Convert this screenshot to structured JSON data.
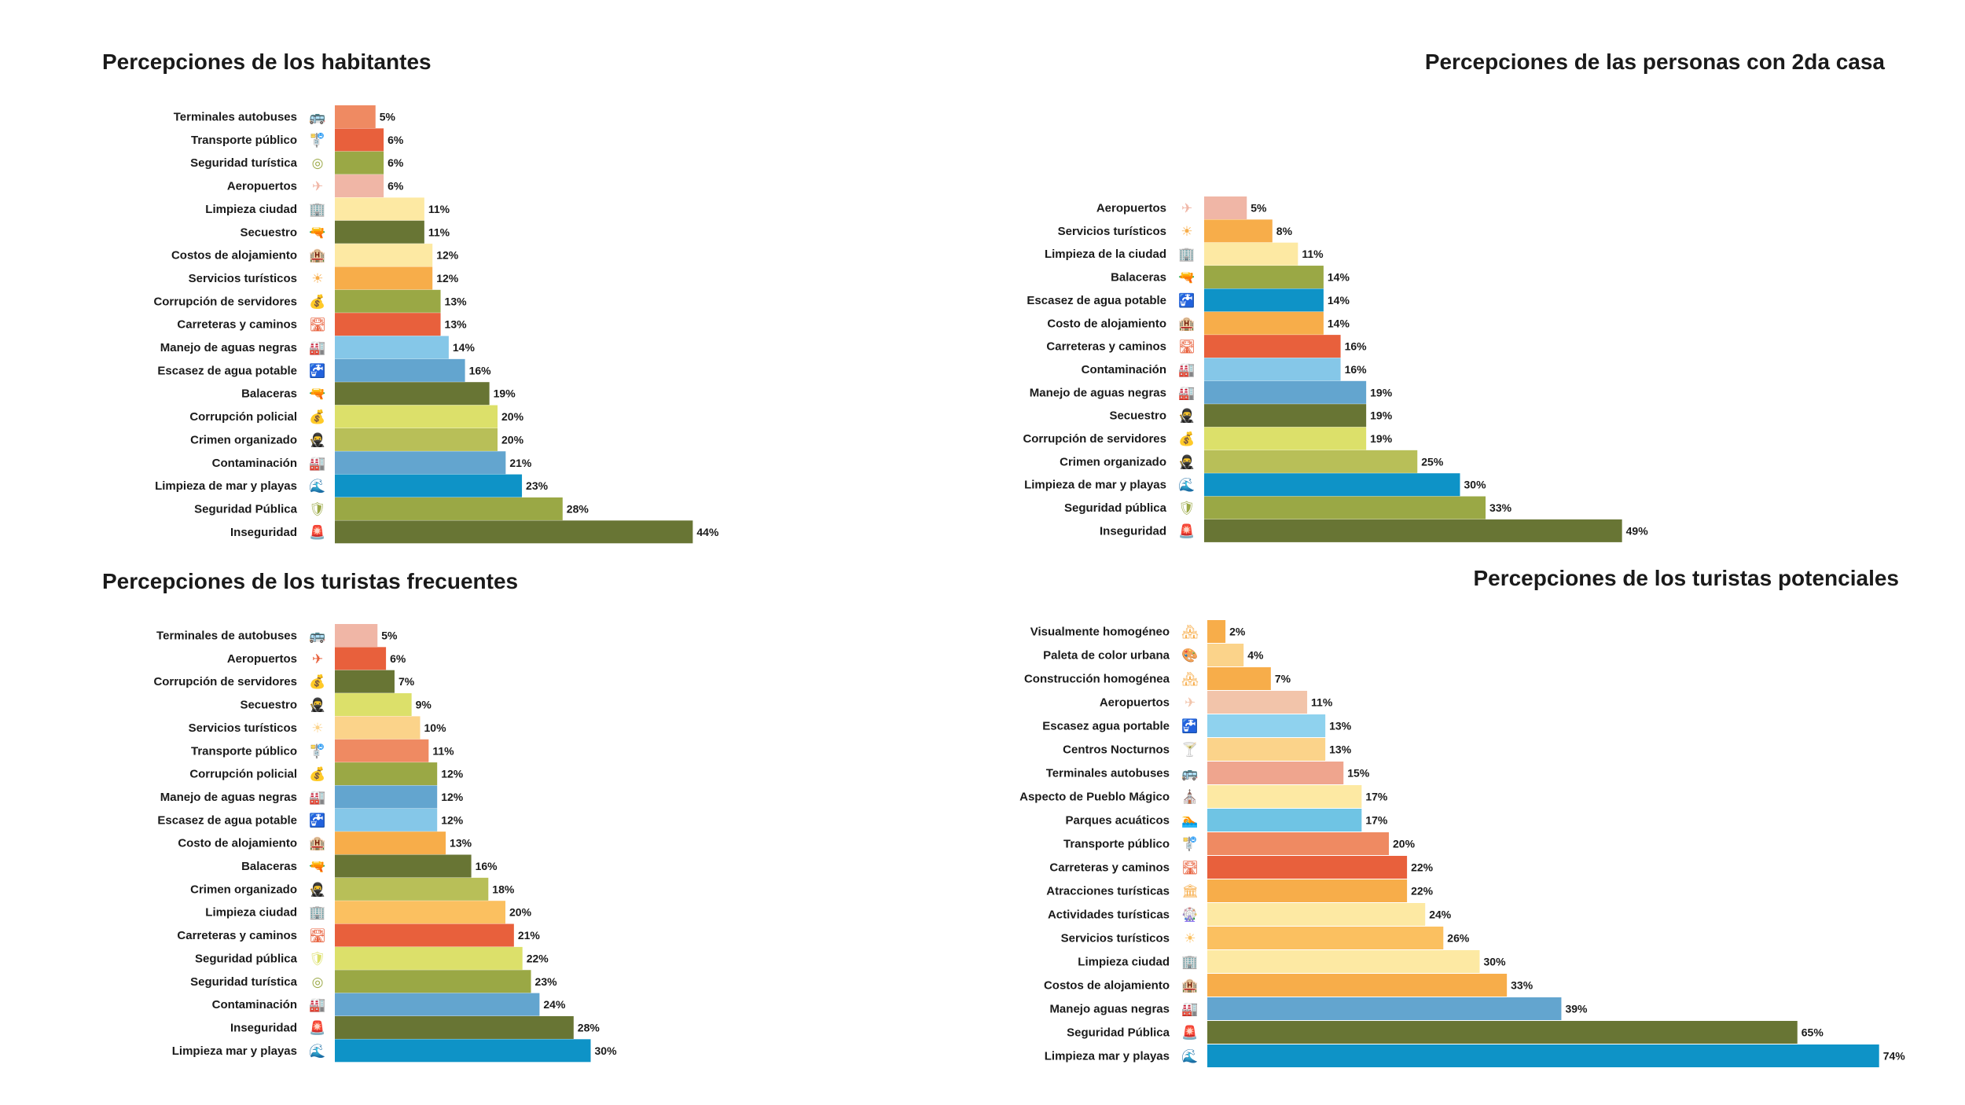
{
  "chart_data": [
    {
      "type": "bar",
      "title": "Percepciones de los habitantes",
      "unit": "%",
      "categories": [
        "Terminales autobuses",
        "Transporte público",
        "Seguridad turística",
        "Aeropuertos",
        "Limpieza ciudad",
        "Secuestro",
        "Costos de alojamiento",
        "Servicios turísticos",
        "Corrupción de servidores",
        "Carreteras y caminos",
        "Manejo de aguas negras",
        "Escasez de agua potable",
        "Balaceras",
        "Corrupción policial",
        "Crimen organizado",
        "Contaminación",
        "Limpieza de mar y playas",
        "Seguridad Pública",
        "Inseguridad"
      ],
      "values": [
        5,
        6,
        6,
        6,
        11,
        11,
        12,
        12,
        13,
        13,
        14,
        16,
        19,
        20,
        20,
        21,
        23,
        28,
        44
      ],
      "value_labels": [
        "5%",
        "6%",
        "6%",
        "6%",
        "11%",
        "11%",
        "12%",
        "12%",
        "13%",
        "13%",
        "14%",
        "16%",
        "19%",
        "20%",
        "20%",
        "21%",
        "23%",
        "28%",
        "44%"
      ],
      "colors": [
        "#ef8a62",
        "#e8603c",
        "#9aa845",
        "#f0b6a6",
        "#fde9a3",
        "#687534",
        "#fde9a3",
        "#f7ad4a",
        "#9aa845",
        "#e8603c",
        "#85c7e8",
        "#63a5cf",
        "#687534",
        "#dce06a",
        "#b8bf58",
        "#63a5cf",
        "#0e93c7",
        "#9aa845",
        "#687534"
      ],
      "icons": [
        "bus-icon",
        "bus-stop-icon",
        "lifebuoy-icon",
        "airplane-icon",
        "building-icon",
        "pistol-icon",
        "hotel-icon",
        "tourist-services-icon",
        "bribe-hands-icon",
        "road-icon",
        "sewage-icon",
        "faucet-icon",
        "pistol-icon",
        "bribe-hands-icon",
        "masked-criminal-icon",
        "factory-icon",
        "beach-wave-icon",
        "police-shield-icon",
        "alarm-icon"
      ],
      "xlabel": "",
      "ylabel": "",
      "xlim": [
        0,
        100
      ]
    },
    {
      "type": "bar",
      "title": "Percepciones de las personas con 2da casa",
      "unit": "%",
      "categories": [
        "Aeropuertos",
        "Servicios turísticos",
        "Limpieza de la ciudad",
        "Balaceras",
        "Escasez de agua potable",
        "Costo de alojamiento",
        "Carreteras y caminos",
        "Contaminación",
        "Manejo de aguas negras",
        "Secuestro",
        "Corrupción de servidores",
        "Crimen organizado",
        "Limpieza de mar y playas",
        "Seguridad pública",
        "Inseguridad"
      ],
      "values": [
        5,
        8,
        11,
        14,
        14,
        14,
        16,
        16,
        19,
        19,
        19,
        25,
        30,
        33,
        49
      ],
      "value_labels": [
        "5%",
        "8%",
        "11%",
        "14%",
        "14%",
        "14%",
        "16%",
        "16%",
        "19%",
        "19%",
        "19%",
        "25%",
        "30%",
        "33%",
        "49%"
      ],
      "colors": [
        "#f0b6a6",
        "#f7ad4a",
        "#fde9a3",
        "#9aa845",
        "#0e93c7",
        "#f7ad4a",
        "#e8603c",
        "#85c7e8",
        "#63a5cf",
        "#687534",
        "#dce06a",
        "#b8bf58",
        "#0e93c7",
        "#9aa845",
        "#687534"
      ],
      "icons": [
        "airplane-icon",
        "tourist-services-icon",
        "building-icon",
        "pistol-icon",
        "faucet-icon",
        "hotel-icon",
        "road-icon",
        "factory-icon",
        "sewage-icon",
        "masked-criminal-icon",
        "bribe-hands-icon",
        "masked-criminal-icon",
        "beach-wave-icon",
        "police-shield-icon",
        "alarm-icon"
      ],
      "xlabel": "",
      "ylabel": "",
      "xlim": [
        0,
        100
      ]
    },
    {
      "type": "bar",
      "title": "Percepciones de los turistas frecuentes",
      "unit": "%",
      "categories": [
        "Terminales de autobuses",
        "Aeropuertos",
        "Corrupción de servidores",
        "Secuestro",
        "Servicios turísticos",
        "Transporte público",
        "Corrupción policial",
        "Manejo de aguas negras",
        "Escasez de agua potable",
        "Costo de alojamiento",
        "Balaceras",
        "Crimen organizado",
        "Limpieza ciudad",
        "Carreteras y caminos",
        "Seguridad pública",
        "Seguridad turística",
        "Contaminación",
        "Inseguridad",
        "Limpieza mar y playas"
      ],
      "values": [
        5,
        6,
        7,
        9,
        10,
        11,
        12,
        12,
        12,
        13,
        16,
        18,
        20,
        21,
        22,
        23,
        24,
        28,
        30
      ],
      "value_labels": [
        "5%",
        "6%",
        "7%",
        "9%",
        "10%",
        "11%",
        "12%",
        "12%",
        "12%",
        "13%",
        "16%",
        "18%",
        "20%",
        "21%",
        "22%",
        "23%",
        "24%",
        "28%",
        "30%"
      ],
      "colors": [
        "#f0b6a6",
        "#e8603c",
        "#687534",
        "#dce06a",
        "#fbd38a",
        "#ef8a62",
        "#9aa845",
        "#63a5cf",
        "#85c7e8",
        "#f7ad4a",
        "#687534",
        "#b8bf58",
        "#fbc060",
        "#e8603c",
        "#dce06a",
        "#9aa845",
        "#63a5cf",
        "#687534",
        "#0e93c7"
      ],
      "icons": [
        "bus-icon",
        "airplane-icon",
        "bribe-hands-icon",
        "masked-criminal-icon",
        "tourist-services-icon",
        "bus-stop-icon",
        "bribe-hands-icon",
        "sewage-icon",
        "faucet-icon",
        "hotel-icon",
        "pistol-icon",
        "masked-criminal-icon",
        "building-icon",
        "road-icon",
        "police-shield-icon",
        "lifebuoy-icon",
        "factory-icon",
        "alarm-icon",
        "beach-wave-icon"
      ],
      "xlabel": "",
      "ylabel": "",
      "xlim": [
        0,
        100
      ]
    },
    {
      "type": "bar",
      "title": "Percepciones de los turistas potenciales",
      "unit": "%",
      "categories": [
        "Visualmente homogéneo",
        "Paleta de color urbana",
        "Construcción homogénea",
        "Aeropuertos",
        "Escasez agua portable",
        "Centros Nocturnos",
        "Terminales autobuses",
        "Aspecto de Pueblo Mágico",
        "Parques acuáticos",
        "Transporte público",
        "Carreteras y caminos",
        "Atracciones turísticas",
        "Actividades turísticas",
        "Servicios turísticos",
        "Limpieza ciudad",
        "Costos de alojamiento",
        "Manejo aguas negras",
        "Seguridad Pública",
        "Limpieza mar y playas"
      ],
      "values": [
        2,
        4,
        7,
        11,
        13,
        13,
        15,
        17,
        17,
        20,
        22,
        22,
        24,
        26,
        30,
        33,
        39,
        65,
        74
      ],
      "value_labels": [
        "2%",
        "4%",
        "7%",
        "11%",
        "13%",
        "13%",
        "15%",
        "17%",
        "17%",
        "20%",
        "22%",
        "22%",
        "24%",
        "26%",
        "30%",
        "33%",
        "39%",
        "65%",
        "74%"
      ],
      "colors": [
        "#f7ad4a",
        "#fbd38a",
        "#f7ad4a",
        "#f2c4aa",
        "#8fd2ee",
        "#fbd38a",
        "#efa58e",
        "#fde9a3",
        "#6fc4e4",
        "#ef8a62",
        "#e8603c",
        "#f7ad4a",
        "#fde9a3",
        "#fbc060",
        "#fde9a3",
        "#f7ad4a",
        "#63a5cf",
        "#687534",
        "#0e93c7"
      ],
      "icons": [
        "houses-icon",
        "palette-icon",
        "houses-icon",
        "airplane-icon",
        "faucet-icon",
        "nightlife-icon",
        "bus-icon",
        "pueblo-magico-icon",
        "water-park-icon",
        "bus-stop-icon",
        "road-icon",
        "museum-icon",
        "activities-icon",
        "tourist-services-icon",
        "building-icon",
        "hotel-icon",
        "sewage-icon",
        "alarm-icon",
        "beach-wave-icon"
      ],
      "xlabel": "",
      "ylabel": "",
      "xlim": [
        0,
        100
      ]
    }
  ]
}
